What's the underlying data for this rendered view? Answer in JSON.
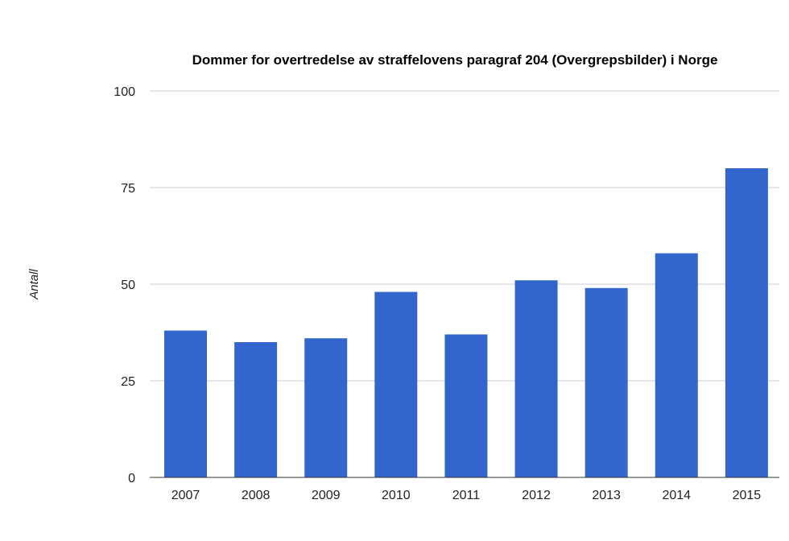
{
  "chart_data": {
    "type": "bar",
    "title": "Dommer for overtredelse av straffelovens paragraf 204 (Overgrepsbilder) i Norge",
    "ylabel": "Antall",
    "xlabel": "",
    "categories": [
      "2007",
      "2008",
      "2009",
      "2010",
      "2011",
      "2012",
      "2013",
      "2014",
      "2015"
    ],
    "values": [
      38,
      35,
      36,
      48,
      37,
      51,
      49,
      58,
      80
    ],
    "ylim": [
      0,
      100
    ],
    "yticks": [
      0,
      25,
      50,
      75,
      100
    ],
    "grid": true,
    "legend": "none",
    "colors": {
      "bar": "#3366cc",
      "grid": "#cccccc",
      "baseline": "#333333",
      "text": "#222222"
    }
  }
}
